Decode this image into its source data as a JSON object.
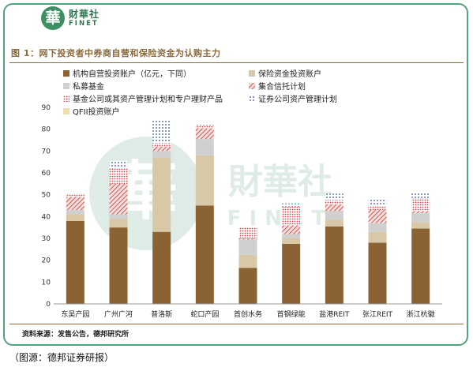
{
  "brand": {
    "mark": "華",
    "name_cn": "财華社",
    "name_en": "FINET",
    "watermark_cn": "財華社",
    "watermark_en": "FINET"
  },
  "figure_title": "图 1：网下投资者中券商自营和保险资金为认购主力",
  "source_note": "资料来源：发售公告，德邦研究所",
  "caption": "（图源：德邦证券研报）",
  "colors": {
    "frame": "#56a07a",
    "title": "#8a6a3d",
    "s1": "#8b6234",
    "s2": "#d9c8a8",
    "s3": "#d0d0d0",
    "s4": "#c0392b",
    "s5": "#e0404a",
    "s6": "#2f4f9f",
    "s7": "#f3ddb0"
  },
  "chart_data": {
    "type": "bar",
    "stacked": true,
    "categories": [
      "东吴产园",
      "广州广河",
      "普洛斯",
      "蛇口产园",
      "首创水务",
      "首钢绿能",
      "盐港REIT",
      "张江REIT",
      "浙江杭徽"
    ],
    "series": [
      {
        "name": "机构自营投资账户（亿元，下同）",
        "pattern": "solid-brown",
        "values": [
          38,
          35,
          33,
          45,
          16.5,
          27.5,
          35.5,
          28,
          34.5
        ]
      },
      {
        "name": "保险资金投资账户",
        "pattern": "solid-tan",
        "values": [
          3,
          4,
          34,
          23,
          6,
          2.5,
          3,
          5,
          3
        ]
      },
      {
        "name": "私募基金",
        "pattern": "solid-lightgray",
        "values": [
          2,
          2,
          3,
          7.5,
          7,
          2,
          4,
          4,
          4
        ]
      },
      {
        "name": "集合信托计划",
        "pattern": "diagonal-red",
        "values": [
          6,
          14,
          2,
          5,
          0.5,
          4,
          3,
          6,
          1
        ]
      },
      {
        "name": "基金公司或其资产管理计划和专户理财产品",
        "pattern": "dotted-red",
        "values": [
          1.5,
          7,
          1.5,
          1,
          5,
          8.5,
          2,
          2,
          6
        ]
      },
      {
        "name": "证券公司资产管理计划",
        "pattern": "dotted-blue",
        "values": [
          0.5,
          3.5,
          10.5,
          0.5,
          0.5,
          1.5,
          3,
          3.5,
          2.5
        ]
      },
      {
        "name": "QFII投资账户",
        "pattern": "solid-cream",
        "values": [
          0,
          0,
          0,
          0,
          0,
          0,
          0,
          0,
          0
        ]
      }
    ],
    "ylim": [
      0,
      90
    ],
    "yticks": [
      0,
      10,
      20,
      30,
      40,
      50,
      60,
      70,
      80,
      90
    ],
    "grid": false,
    "legend_position": "top"
  }
}
